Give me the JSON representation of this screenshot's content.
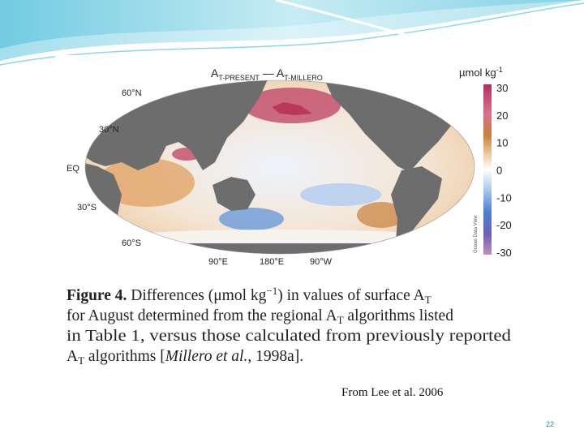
{
  "figure": {
    "title": {
      "a1": "A",
      "s1": "T-PRESENT",
      "a2": " — A",
      "s2": "T-MILLERO"
    },
    "units": {
      "base": "µmol kg",
      "sup": "-1"
    },
    "colorbar_ticks": [
      "30",
      "20",
      "10",
      "0",
      "-10",
      "-20",
      "-30"
    ],
    "watermark": "Ocean Data View",
    "lat_labels": [
      "60°N",
      "30°N",
      "EQ",
      "30°S",
      "60°S"
    ],
    "lon_labels": [
      "90°E",
      "180°E",
      "90°W"
    ]
  },
  "caption": {
    "lines": [
      [
        "Figure 4.",
        "  Differences (μmol kg",
        "−1",
        ") in values of surface A",
        "T"
      ],
      [
        "for August determined from the regional A",
        "T",
        " algorithms listed"
      ],
      [
        "in Table 1, versus those calculated from previously reported"
      ],
      [
        "A",
        "T",
        " algorithms [",
        "Millero et al.",
        ", 1998a]."
      ]
    ]
  },
  "source": "From Lee et al. 2006",
  "page_number": "22"
}
